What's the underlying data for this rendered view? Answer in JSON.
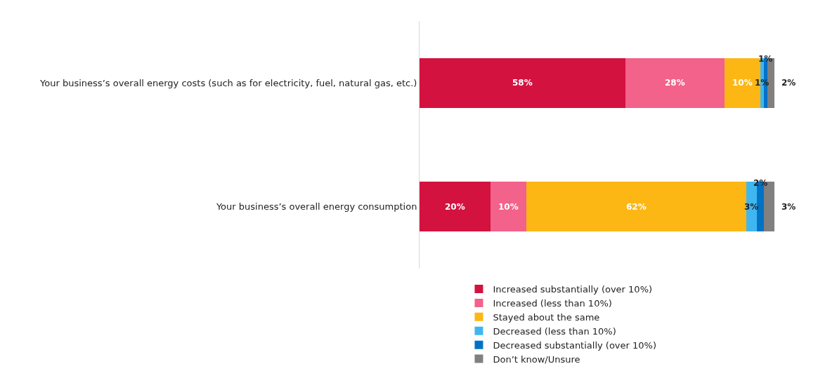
{
  "chart_data": {
    "type": "bar",
    "orientation": "horizontal",
    "stacked": true,
    "legend": "bottom",
    "categories": [
      "Your business’s overall energy costs (such as for electricity, fuel, natural gas, etc.)",
      "Your business’s overall energy consumption"
    ],
    "series": [
      {
        "name": "Increased substantially (over 10%)",
        "color": "#d3123f",
        "values": [
          58,
          20
        ],
        "value_labels": [
          "58%",
          "20%"
        ]
      },
      {
        "name": "Increased (less than 10%)",
        "color": "#f2628a",
        "values": [
          28,
          10
        ],
        "value_labels": [
          "28%",
          "10%"
        ]
      },
      {
        "name": "Stayed about the same",
        "color": "#fdb714",
        "values": [
          10,
          62
        ],
        "value_labels": [
          "10%",
          "62%"
        ]
      },
      {
        "name": "Decreased (less than 10%)",
        "color": "#3fb6f0",
        "values": [
          1,
          3
        ],
        "value_labels": [
          "1%",
          "3%"
        ]
      },
      {
        "name": "Decreased substantially (over 10%)",
        "color": "#0072c6",
        "values": [
          1,
          2
        ],
        "value_labels": [
          "1%",
          "2%"
        ]
      },
      {
        "name": "Don’t know/Unsure",
        "color": "#808080",
        "values": [
          2,
          3
        ],
        "value_labels": [
          "2%",
          "3%"
        ]
      }
    ]
  }
}
